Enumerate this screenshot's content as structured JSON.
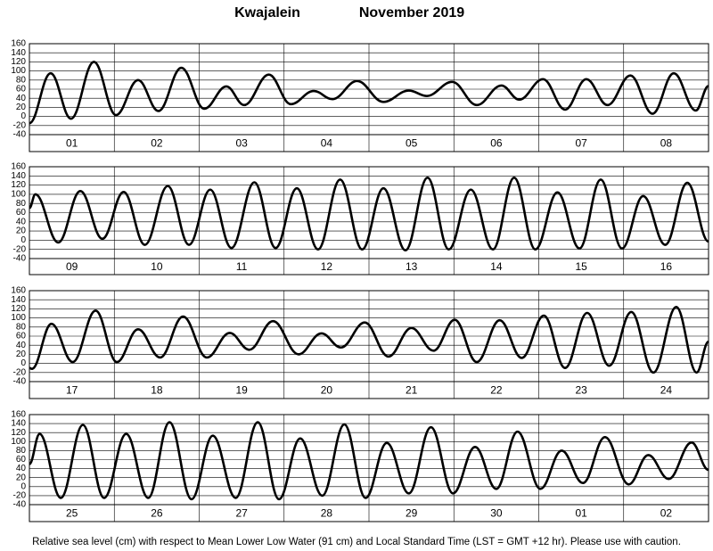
{
  "title": "Kwajalein",
  "month": "November 2019",
  "footer": "Relative sea level (cm) with respect to Mean Lower Low Water (91 cm) and Local Standard Time (LST = GMT +12 hr). Please use with caution.",
  "chart_data": [
    {
      "type": "line",
      "categories": [
        "01",
        "02",
        "03",
        "04",
        "05",
        "06",
        "07",
        "08"
      ],
      "xlim": [
        0,
        8
      ],
      "ylim": [
        -40,
        160
      ],
      "yticks": [
        -40,
        -20,
        0,
        20,
        40,
        60,
        80,
        100,
        120,
        140,
        160
      ],
      "color": "#000000",
      "x": [
        0,
        0.25,
        0.49,
        0.76,
        1.02,
        1.28,
        1.52,
        1.79,
        2.06,
        2.32,
        2.53,
        2.82,
        3.08,
        3.35,
        3.57,
        3.86,
        4.17,
        4.47,
        4.68,
        4.98,
        5.27,
        5.56,
        5.77,
        6.05,
        6.31,
        6.56,
        6.81,
        7.08,
        7.34,
        7.59,
        7.85,
        8
      ],
      "values": [
        -15,
        95,
        -5,
        120,
        3,
        80,
        12,
        107,
        17,
        66,
        25,
        92,
        27,
        56,
        38,
        78,
        32,
        57,
        45,
        76,
        25,
        68,
        37,
        82,
        15,
        82,
        25,
        90,
        6,
        95,
        13,
        67
      ]
    },
    {
      "type": "line",
      "categories": [
        "09",
        "10",
        "11",
        "12",
        "13",
        "14",
        "15",
        "16"
      ],
      "xlim": [
        0,
        8
      ],
      "ylim": [
        -40,
        160
      ],
      "yticks": [
        -40,
        -20,
        0,
        20,
        40,
        60,
        80,
        100,
        120,
        140,
        160
      ],
      "color": "#000000",
      "x": [
        0,
        0.07,
        0.34,
        0.6,
        0.86,
        1.11,
        1.36,
        1.63,
        1.88,
        2.13,
        2.38,
        2.65,
        2.9,
        3.15,
        3.4,
        3.66,
        3.92,
        4.17,
        4.43,
        4.69,
        4.94,
        5.2,
        5.46,
        5.71,
        5.96,
        6.22,
        6.48,
        6.73,
        6.98,
        7.23,
        7.49,
        7.75,
        8
      ],
      "values": [
        70,
        100,
        -5,
        107,
        3,
        105,
        -10,
        118,
        -10,
        110,
        -17,
        126,
        -17,
        113,
        -20,
        132,
        -20,
        113,
        -22,
        136,
        -20,
        110,
        -20,
        136,
        -20,
        104,
        -18,
        132,
        -18,
        96,
        -10,
        125,
        -3
      ]
    },
    {
      "type": "line",
      "categories": [
        "17",
        "18",
        "19",
        "20",
        "21",
        "22",
        "23",
        "24"
      ],
      "xlim": [
        0,
        8
      ],
      "ylim": [
        -40,
        160
      ],
      "yticks": [
        -40,
        -20,
        0,
        20,
        40,
        60,
        80,
        100,
        120,
        140,
        160
      ],
      "color": "#000000",
      "x": [
        0,
        0.03,
        0.26,
        0.51,
        0.78,
        1.03,
        1.28,
        1.54,
        1.81,
        2.09,
        2.36,
        2.59,
        2.87,
        3.17,
        3.44,
        3.67,
        3.95,
        4.23,
        4.5,
        4.76,
        5.01,
        5.27,
        5.54,
        5.8,
        6.06,
        6.31,
        6.57,
        6.83,
        7.09,
        7.35,
        7.62,
        7.86,
        8
      ],
      "values": [
        -10,
        -12,
        87,
        3,
        116,
        3,
        75,
        13,
        103,
        13,
        67,
        30,
        93,
        20,
        66,
        35,
        90,
        15,
        78,
        28,
        96,
        3,
        95,
        12,
        105,
        -10,
        111,
        -5,
        113,
        -20,
        124,
        -20,
        48
      ]
    },
    {
      "type": "line",
      "categories": [
        "25",
        "26",
        "27",
        "28",
        "29",
        "30",
        "01",
        "02"
      ],
      "xlim": [
        0,
        8
      ],
      "ylim": [
        -40,
        160
      ],
      "yticks": [
        -40,
        -20,
        0,
        20,
        40,
        60,
        80,
        100,
        120,
        140,
        160
      ],
      "color": "#000000",
      "x": [
        0,
        0.12,
        0.37,
        0.63,
        0.88,
        1.14,
        1.4,
        1.65,
        1.91,
        2.16,
        2.43,
        2.69,
        2.94,
        3.19,
        3.45,
        3.71,
        3.96,
        4.21,
        4.47,
        4.73,
        4.99,
        5.25,
        5.5,
        5.75,
        6.02,
        6.27,
        6.52,
        6.78,
        7.06,
        7.29,
        7.53,
        7.8,
        8
      ],
      "values": [
        50,
        117,
        -25,
        137,
        -25,
        117,
        -25,
        143,
        -28,
        113,
        -25,
        143,
        -28,
        107,
        -20,
        138,
        -25,
        97,
        -15,
        132,
        -15,
        88,
        -5,
        122,
        -5,
        80,
        8,
        110,
        5,
        70,
        17,
        98,
        37
      ]
    }
  ]
}
